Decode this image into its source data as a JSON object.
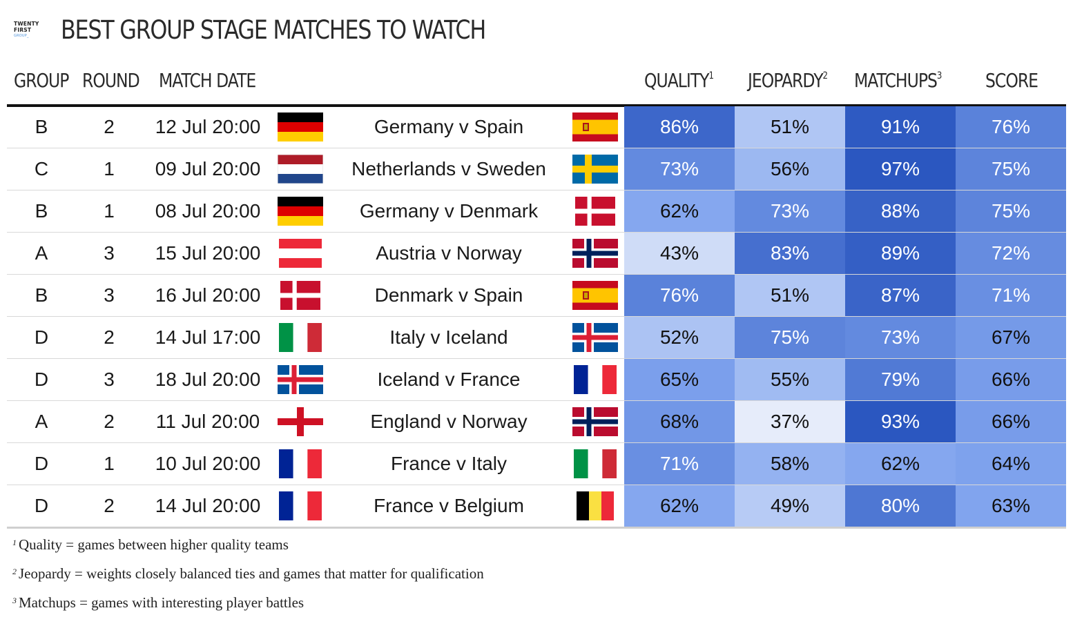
{
  "logo": {
    "line1": "TWENTY",
    "line2": "FIRST",
    "line3": "GROUP_"
  },
  "title": "BEST GROUP STAGE MATCHES TO WATCH",
  "headers": {
    "group": "GROUP",
    "round": "ROUND",
    "date": "MATCH DATE",
    "quality": "QUALITY",
    "quality_sup": "1",
    "jeopardy": "JEOPARDY",
    "jeopardy_sup": "2",
    "matchups": "MATCHUPS",
    "matchups_sup": "3",
    "score": "SCORE"
  },
  "chart_data": {
    "type": "table",
    "title": "BEST GROUP STAGE MATCHES TO WATCH",
    "columns": [
      "GROUP",
      "ROUND",
      "MATCH DATE",
      "MATCH",
      "QUALITY",
      "JEOPARDY",
      "MATCHUPS",
      "SCORE"
    ],
    "rows": [
      {
        "group": "B",
        "round": "2",
        "date": "12 Jul 20:00",
        "home_flag": "germany",
        "match": "Germany v Spain",
        "away_flag": "spain",
        "quality": 86,
        "jeopardy": 51,
        "matchups": 91,
        "score": 76
      },
      {
        "group": "C",
        "round": "1",
        "date": "09 Jul 20:00",
        "home_flag": "netherlands",
        "match": "Netherlands v Sweden",
        "away_flag": "sweden",
        "quality": 73,
        "jeopardy": 56,
        "matchups": 97,
        "score": 75
      },
      {
        "group": "B",
        "round": "1",
        "date": "08 Jul 20:00",
        "home_flag": "germany",
        "match": "Germany v Denmark",
        "away_flag": "denmark",
        "quality": 62,
        "jeopardy": 73,
        "matchups": 88,
        "score": 75
      },
      {
        "group": "A",
        "round": "3",
        "date": "15 Jul 20:00",
        "home_flag": "austria",
        "match": "Austria v Norway",
        "away_flag": "norway",
        "quality": 43,
        "jeopardy": 83,
        "matchups": 89,
        "score": 72
      },
      {
        "group": "B",
        "round": "3",
        "date": "16 Jul 20:00",
        "home_flag": "denmark",
        "match": "Denmark v Spain",
        "away_flag": "spain",
        "quality": 76,
        "jeopardy": 51,
        "matchups": 87,
        "score": 71
      },
      {
        "group": "D",
        "round": "2",
        "date": "14 Jul 17:00",
        "home_flag": "italy",
        "match": "Italy v Iceland",
        "away_flag": "iceland",
        "quality": 52,
        "jeopardy": 75,
        "matchups": 73,
        "score": 67
      },
      {
        "group": "D",
        "round": "3",
        "date": "18 Jul 20:00",
        "home_flag": "iceland",
        "match": "Iceland v France",
        "away_flag": "france",
        "quality": 65,
        "jeopardy": 55,
        "matchups": 79,
        "score": 66
      },
      {
        "group": "A",
        "round": "2",
        "date": "11 Jul 20:00",
        "home_flag": "england",
        "match": "England v Norway",
        "away_flag": "norway",
        "quality": 68,
        "jeopardy": 37,
        "matchups": 93,
        "score": 66
      },
      {
        "group": "D",
        "round": "1",
        "date": "10 Jul 20:00",
        "home_flag": "france",
        "match": "France v Italy",
        "away_flag": "italy",
        "quality": 71,
        "jeopardy": 58,
        "matchups": 62,
        "score": 64
      },
      {
        "group": "D",
        "round": "2",
        "date": "14 Jul 20:00",
        "home_flag": "france",
        "match": "France v Belgium",
        "away_flag": "belgium",
        "quality": 62,
        "jeopardy": 49,
        "matchups": 80,
        "score": 63
      }
    ],
    "value_suffix": "%",
    "color_scale": {
      "low": "#eef2fb",
      "mid": "#7fa3ee",
      "high": "#2b57c0"
    }
  },
  "footnotes": [
    {
      "sup": "1",
      "text": "Quality = games between higher quality teams"
    },
    {
      "sup": "2",
      "text": "Jeopardy = weights closely balanced ties and games that matter for qualification"
    },
    {
      "sup": "3",
      "text": "Matchups = games with interesting player battles"
    }
  ]
}
